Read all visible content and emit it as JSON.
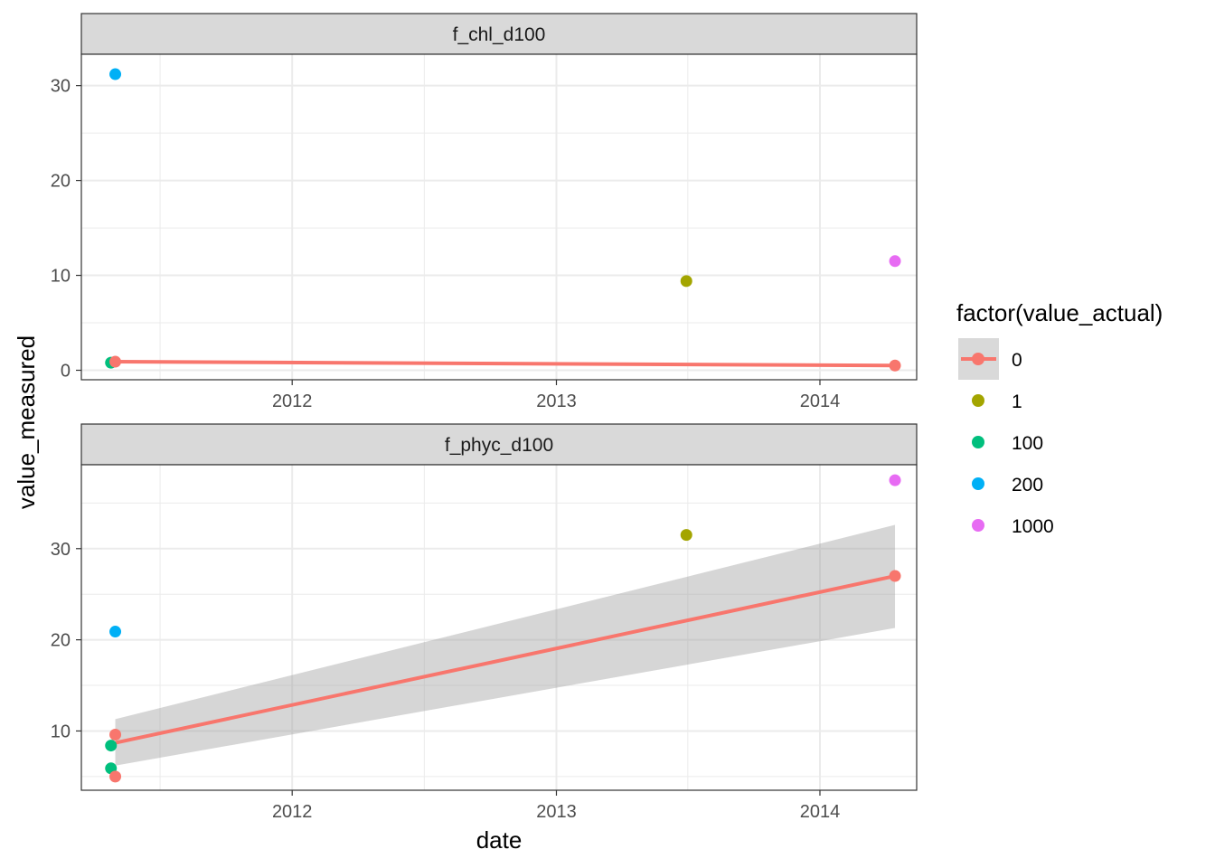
{
  "chart_data": {
    "type": "scatter",
    "xlabel": "date",
    "ylabel": "value_measured",
    "x_ticks": [
      "2012",
      "2013",
      "2014"
    ],
    "x_range": [
      "2011-03-15",
      "2014-05-15"
    ],
    "grid": true,
    "legend": {
      "title": "factor(value_actual)",
      "placement": "right",
      "entries": [
        {
          "label": "0",
          "color": "#F8766D",
          "line": true
        },
        {
          "label": "1",
          "color": "#A3A500"
        },
        {
          "label": "100",
          "color": "#00BF7D"
        },
        {
          "label": "200",
          "color": "#00B0F6"
        },
        {
          "label": "1000",
          "color": "#E76BF3"
        }
      ]
    },
    "panels": [
      {
        "strip": "f_chl_d100",
        "y_ticks": [
          0,
          10,
          20,
          30
        ],
        "ylim": [
          -1,
          33.3
        ],
        "points": [
          {
            "date": "2011-05-01",
            "value": 31.2,
            "group": "200"
          },
          {
            "date": "2011-04-25",
            "value": 0.8,
            "group": "100"
          },
          {
            "date": "2011-05-01",
            "value": 0.9,
            "group": "0"
          },
          {
            "date": "2013-06-30",
            "value": 9.4,
            "group": "1"
          },
          {
            "date": "2014-04-15",
            "value": 11.5,
            "group": "1000"
          },
          {
            "date": "2014-04-15",
            "value": 0.5,
            "group": "0"
          }
        ],
        "fit": {
          "group": "0",
          "x": [
            "2011-05-01",
            "2014-04-15"
          ],
          "y": [
            0.9,
            0.5
          ]
        }
      },
      {
        "strip": "f_phyc_d100",
        "y_ticks": [
          10,
          20,
          30
        ],
        "ylim": [
          3.5,
          39.2
        ],
        "points": [
          {
            "date": "2011-05-01",
            "value": 20.9,
            "group": "200"
          },
          {
            "date": "2011-05-01",
            "value": 9.6,
            "group": "0"
          },
          {
            "date": "2011-04-25",
            "value": 8.4,
            "group": "100"
          },
          {
            "date": "2011-04-25",
            "value": 5.9,
            "group": "100"
          },
          {
            "date": "2011-05-01",
            "value": 5.0,
            "group": "0"
          },
          {
            "date": "2013-06-30",
            "value": 31.5,
            "group": "1"
          },
          {
            "date": "2014-04-15",
            "value": 37.5,
            "group": "1000"
          },
          {
            "date": "2014-04-15",
            "value": 27.0,
            "group": "0"
          }
        ],
        "fit": {
          "group": "0",
          "x": [
            "2011-05-01",
            "2014-04-15"
          ],
          "y": [
            8.7,
            27.0
          ],
          "band_lower": [
            6.2,
            21.3
          ],
          "band_upper": [
            11.3,
            32.6
          ]
        }
      }
    ]
  }
}
